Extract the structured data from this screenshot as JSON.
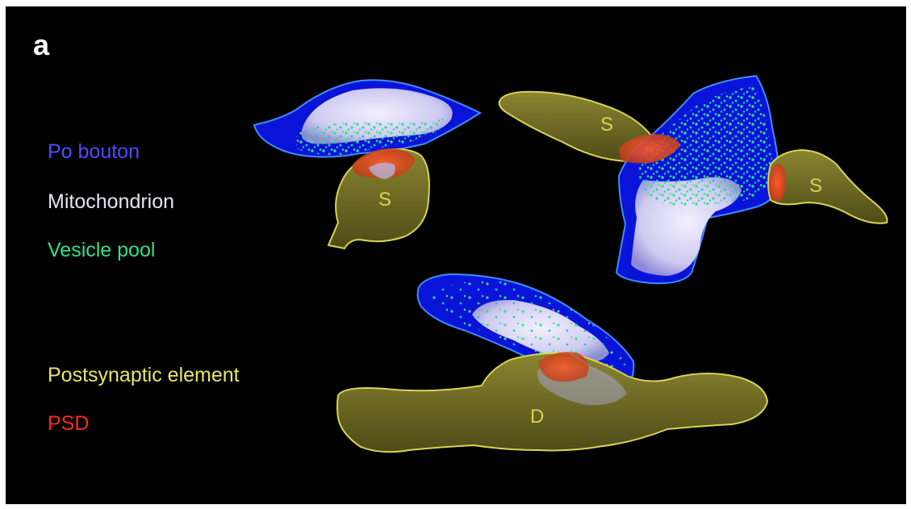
{
  "panel": {
    "letter": "a"
  },
  "legend": {
    "items": [
      {
        "label": "Po bouton",
        "color": "#4d4dff"
      },
      {
        "label": "Mitochondrion",
        "color": "#e8e4f5"
      },
      {
        "label": "Vesicle pool",
        "color": "#2ee08a"
      },
      {
        "label": "Postsynaptic element",
        "color": "#e8e66a"
      },
      {
        "label": "PSD",
        "color": "#ff2a1a"
      }
    ]
  },
  "reconstructions": {
    "left": {
      "postsynaptic_label": "S"
    },
    "right": {
      "postsynaptic_labels": [
        "S",
        "S"
      ]
    },
    "bottom": {
      "postsynaptic_label": "D"
    }
  },
  "colors": {
    "background": "#000000",
    "bouton_fill": "#0a14d8",
    "bouton_outline": "#3d8cff",
    "mitochondrion_fill": "#d9d6f2",
    "vesicle": "#2ad68c",
    "postsynaptic_fill": "#6e6a22",
    "postsynaptic_outline": "#d8d455",
    "psd": "#e0401e"
  }
}
